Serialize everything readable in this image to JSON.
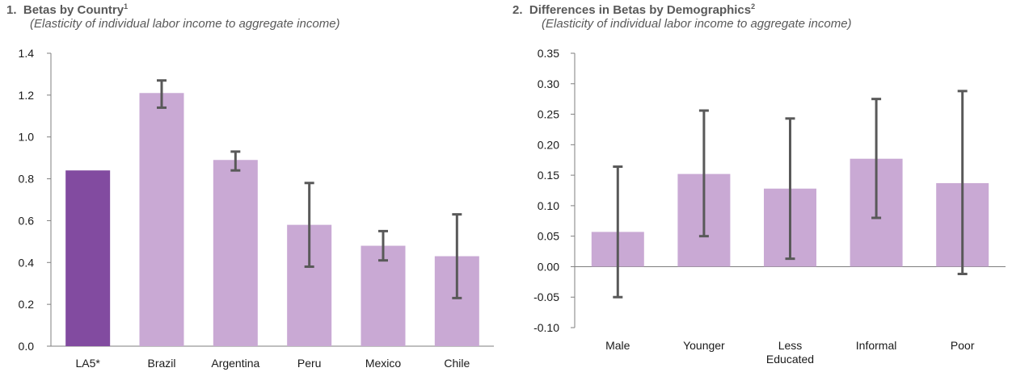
{
  "charts": [
    {
      "number": "1.",
      "title": "Betas by Country",
      "footnote": "1",
      "subtitle": "(Elasticity of individual labor income to aggregate income)"
    },
    {
      "number": "2.",
      "title": "Differences in Betas by Demographics",
      "footnote": "2",
      "subtitle": "(Elasticity of individual labor income to aggregate income)"
    }
  ],
  "colors": {
    "highlight_bar": "#824BA0",
    "bar": "#C9A9D4",
    "error_bar": "#595959",
    "axis": "#7f7f7f"
  },
  "chart_data": [
    {
      "type": "bar",
      "title": "Betas by Country",
      "subtitle": "(Elasticity of individual labor income to aggregate income)",
      "categories": [
        "LA5*",
        "Brazil",
        "Argentina",
        "Peru",
        "Mexico",
        "Chile"
      ],
      "values": [
        0.84,
        1.21,
        0.89,
        0.58,
        0.48,
        0.43
      ],
      "error_low": [
        null,
        1.14,
        0.84,
        0.38,
        0.41,
        0.23
      ],
      "error_high": [
        null,
        1.27,
        0.93,
        0.78,
        0.55,
        0.63
      ],
      "highlight": [
        true,
        false,
        false,
        false,
        false,
        false
      ],
      "ylim": [
        0,
        1.4
      ],
      "yticks": [
        0.0,
        0.2,
        0.4,
        0.6,
        0.8,
        1.0,
        1.2,
        1.4
      ],
      "ytick_labels": [
        "0.0",
        "0.2",
        "0.4",
        "0.6",
        "0.8",
        "1.0",
        "1.2",
        "1.4"
      ],
      "xlabel": "",
      "ylabel": "",
      "grid": false
    },
    {
      "type": "bar",
      "title": "Differences in Betas by Demographics",
      "subtitle": "(Elasticity of individual labor income to aggregate income)",
      "categories": [
        "Male",
        "Younger",
        "Less Educated",
        "Informal",
        "Poor"
      ],
      "values": [
        0.057,
        0.152,
        0.128,
        0.177,
        0.137
      ],
      "error_low": [
        -0.05,
        0.05,
        0.013,
        0.08,
        -0.012
      ],
      "error_high": [
        0.164,
        0.256,
        0.243,
        0.275,
        0.288
      ],
      "highlight": [
        false,
        false,
        false,
        false,
        false
      ],
      "ylim": [
        -0.1,
        0.35
      ],
      "yticks": [
        -0.1,
        -0.05,
        0.0,
        0.05,
        0.1,
        0.15,
        0.2,
        0.25,
        0.3,
        0.35
      ],
      "ytick_labels": [
        "-0.10",
        "-0.05",
        "0.00",
        "0.05",
        "0.10",
        "0.15",
        "0.20",
        "0.25",
        "0.30",
        "0.35"
      ],
      "xlabel": "",
      "ylabel": "",
      "grid": false
    }
  ]
}
